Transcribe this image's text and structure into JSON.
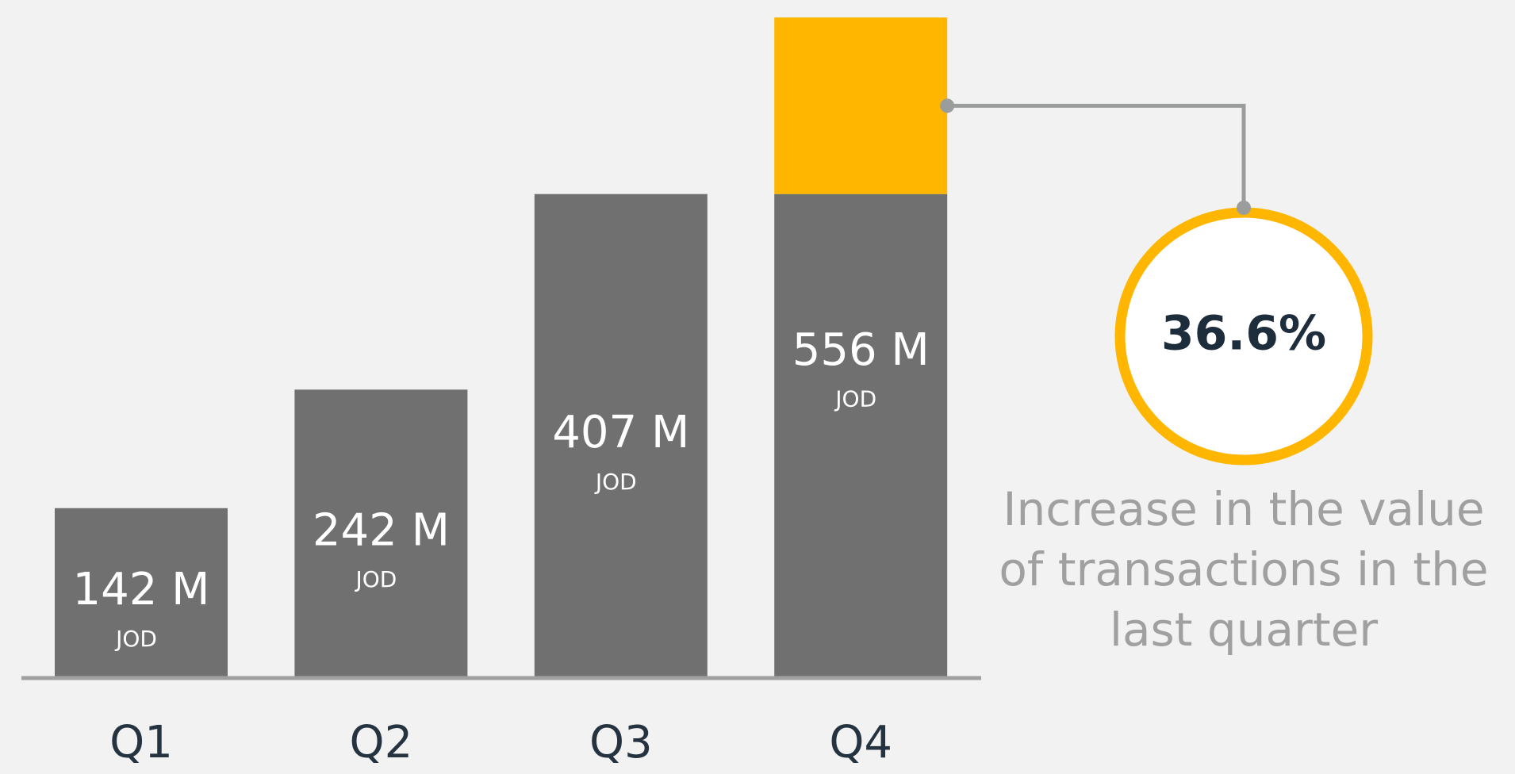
{
  "chart_data": {
    "type": "bar",
    "categories": [
      "Q1",
      "Q2",
      "Q3",
      "Q4"
    ],
    "values": [
      142,
      242,
      407,
      556
    ],
    "value_labels": [
      "142 M",
      "242 M",
      "407 M",
      "556 M"
    ],
    "unit": "JOD",
    "color": "#6f706f",
    "highlight_color": "#ffb600",
    "annotation": {
      "label": "36.6%",
      "text": [
        "Increase in the value",
        "of transactions in the",
        "last quarter"
      ]
    }
  }
}
